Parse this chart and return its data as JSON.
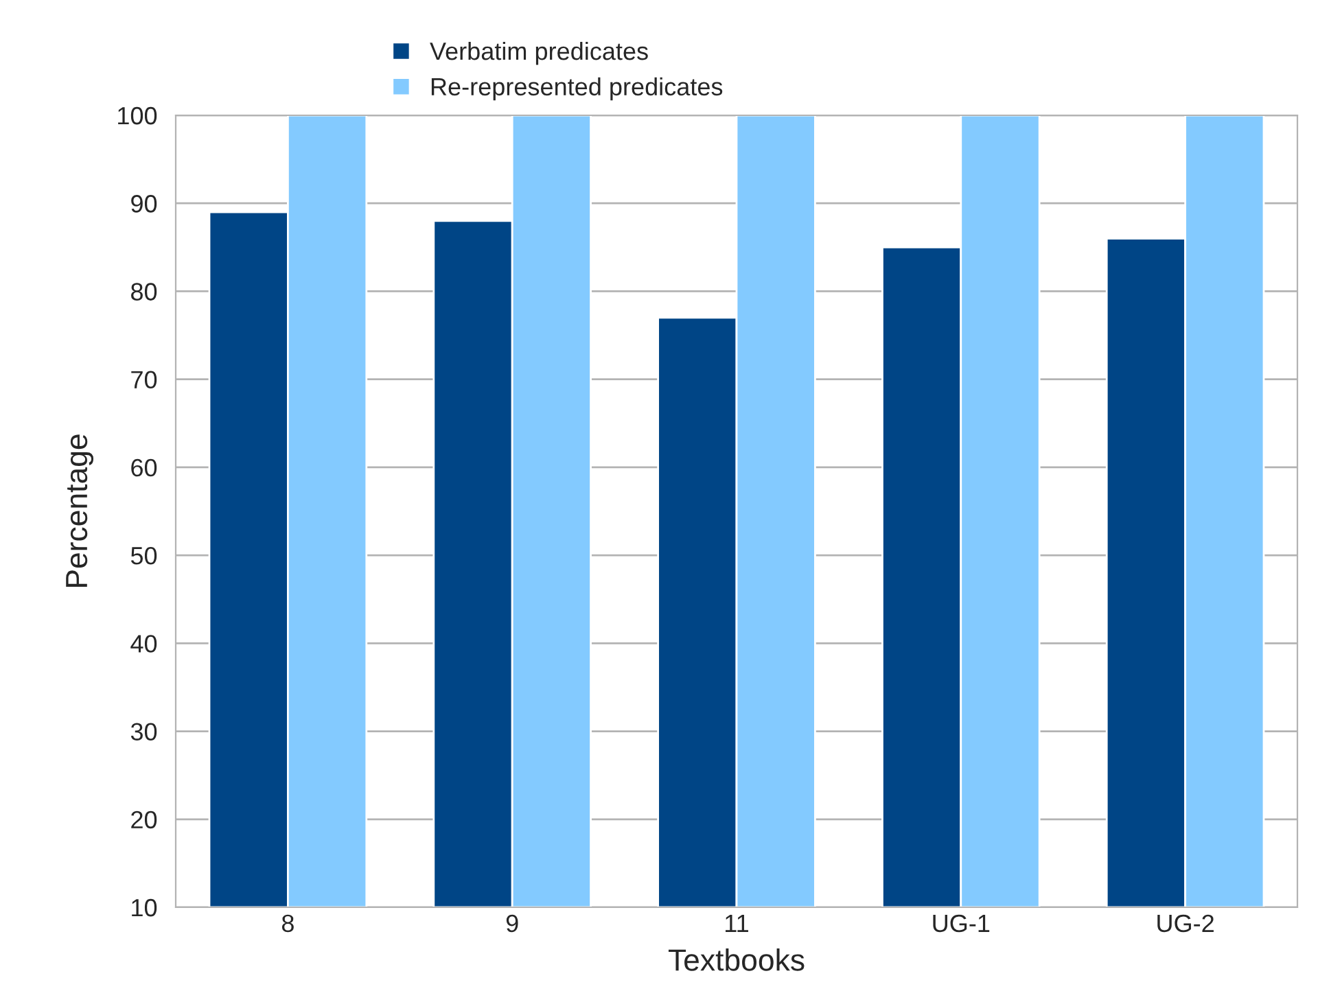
{
  "chart_data": {
    "type": "bar",
    "xlabel": "Textbooks",
    "ylabel": "Percentage",
    "categories": [
      "8",
      "9",
      "11",
      "UG-1",
      "UG-2"
    ],
    "series": [
      {
        "name": "Verbatim predicates",
        "color": "#004586",
        "values": [
          89,
          88,
          77,
          85,
          86
        ]
      },
      {
        "name": "Re-represented predicates",
        "color": "#83caff",
        "values": [
          100,
          100,
          100,
          100,
          100
        ]
      }
    ],
    "ylim": [
      10,
      100
    ],
    "yticks": [
      10,
      20,
      30,
      40,
      50,
      60,
      70,
      80,
      90,
      100
    ],
    "grid": "y",
    "legend": "top"
  }
}
